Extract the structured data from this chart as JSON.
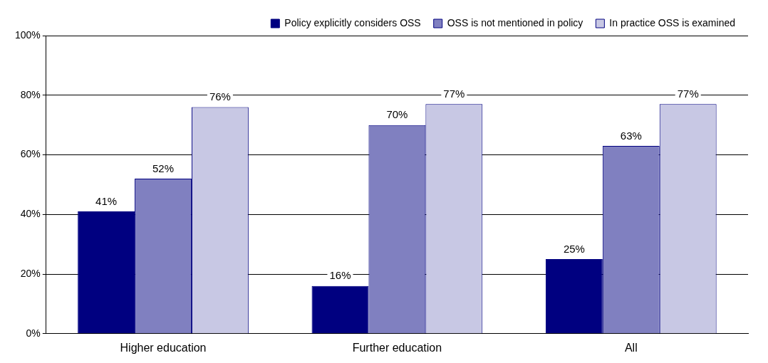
{
  "chart_data": {
    "type": "bar",
    "categories": [
      "Higher education",
      "Further education",
      "All"
    ],
    "series": [
      {
        "name": "Policy explicitly considers OSS",
        "color": "#000080",
        "values": [
          41,
          16,
          25
        ],
        "value_labels": [
          "41%",
          "16%",
          "25%"
        ]
      },
      {
        "name": "OSS is not mentioned in policy",
        "color": "#8080c0",
        "values": [
          52,
          70,
          63
        ],
        "value_labels": [
          "52%",
          "70%",
          "63%"
        ]
      },
      {
        "name": "In practice OSS is examined",
        "color": "#c8c8e4",
        "values": [
          76,
          77,
          77
        ],
        "value_labels": [
          "76%",
          "77%",
          "77%"
        ]
      }
    ],
    "ylim": [
      0,
      100
    ],
    "yticks": [
      {
        "value": 0,
        "label": "0%"
      },
      {
        "value": 20,
        "label": "20%"
      },
      {
        "value": 40,
        "label": "40%"
      },
      {
        "value": 60,
        "label": "60%"
      },
      {
        "value": 80,
        "label": "80%"
      },
      {
        "value": 100,
        "label": "100%"
      }
    ],
    "grid": "y",
    "legend": "top right"
  }
}
